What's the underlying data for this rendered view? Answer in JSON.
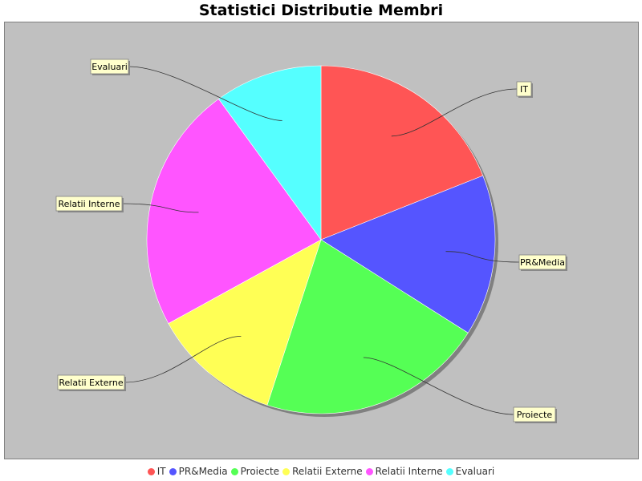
{
  "chart_data": {
    "type": "pie",
    "title": "Statistici Distributie Membri",
    "slices": [
      {
        "label": "IT",
        "value": 19,
        "color": "#ff5555"
      },
      {
        "label": "PR&Media",
        "value": 15,
        "color": "#5555ff"
      },
      {
        "label": "Proiecte",
        "value": 21,
        "color": "#55ff55"
      },
      {
        "label": "Relatii Externe",
        "value": 12,
        "color": "#ffff55"
      },
      {
        "label": "Relatii Interne",
        "value": 23,
        "color": "#ff55ff"
      },
      {
        "label": "Evaluari",
        "value": 10,
        "color": "#55ffff"
      }
    ],
    "legend_position": "bottom",
    "plot_background": "#c0c0c0"
  }
}
